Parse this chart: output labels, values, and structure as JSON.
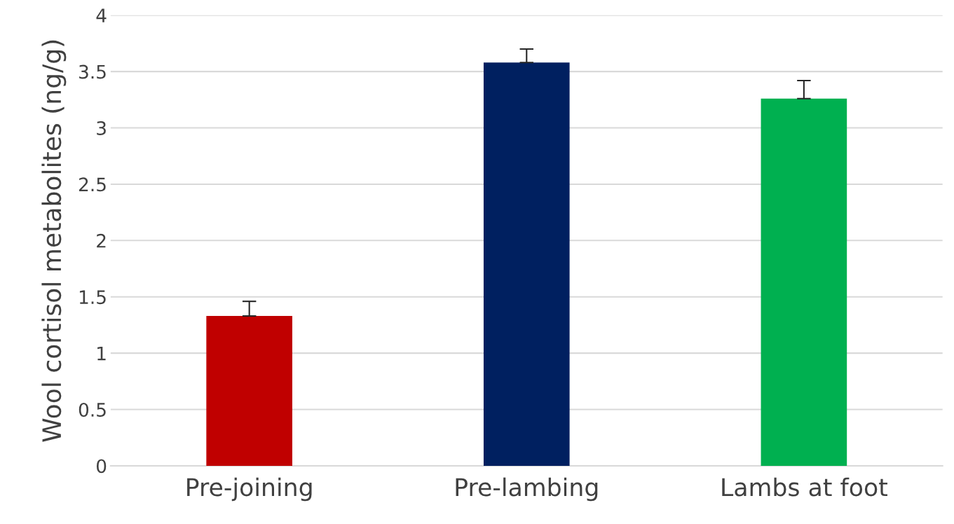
{
  "chart_data": {
    "type": "bar",
    "ylabel": "Wool cortisol metabolites (ng/g)",
    "categories": [
      "Pre-joining",
      "Pre-lambing",
      "Lambs at foot"
    ],
    "values": [
      1.33,
      3.58,
      3.26
    ],
    "colors": [
      "#c00000",
      "#002060",
      "#00b050"
    ],
    "errors": [
      [
        1.33,
        1.46
      ],
      [
        3.58,
        3.7
      ],
      [
        3.26,
        3.42
      ]
    ],
    "ylim": [
      0,
      4
    ],
    "yticks": [
      0,
      0.5,
      1,
      1.5,
      2,
      2.5,
      3,
      3.5,
      4
    ],
    "grid": "y",
    "legend": false
  }
}
